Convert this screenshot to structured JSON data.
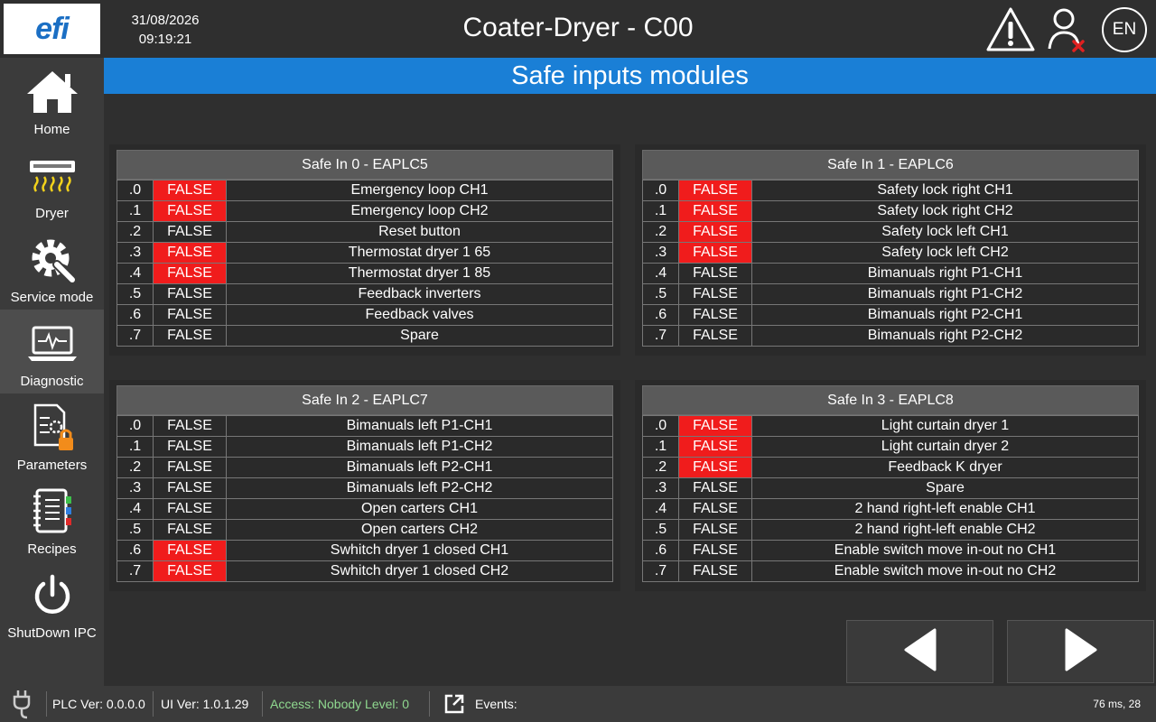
{
  "header": {
    "logo": "efi",
    "date": "31/08/2026",
    "time": "09:19:21",
    "title": "Coater-Dryer - C00",
    "lang": "EN",
    "icons": [
      "warning-icon",
      "user-logout-icon"
    ]
  },
  "sidebar": {
    "items": [
      {
        "label": "Home",
        "icon": "home-icon"
      },
      {
        "label": "Dryer",
        "icon": "dryer-icon"
      },
      {
        "label": "Service mode",
        "icon": "service-gear-icon"
      },
      {
        "label": "Diagnostic",
        "icon": "diagnostic-monitor-icon",
        "active": true
      },
      {
        "label": "Parameters",
        "icon": "parameters-lock-icon"
      },
      {
        "label": "Recipes",
        "icon": "recipes-notebook-icon"
      },
      {
        "label": "ShutDown IPC",
        "icon": "power-icon"
      }
    ]
  },
  "page": {
    "title": "Safe inputs modules"
  },
  "colors": {
    "accent": "#1a7fd6",
    "active_false": "#f01c1c",
    "access": "#8fd88f"
  },
  "modules": [
    {
      "title": "Safe In 0 - EAPLC5",
      "rows": [
        {
          "bit": ".0",
          "value": "FALSE",
          "label": "Emergency loop CH1",
          "alarm": true
        },
        {
          "bit": ".1",
          "value": "FALSE",
          "label": "Emergency loop CH2",
          "alarm": true
        },
        {
          "bit": ".2",
          "value": "FALSE",
          "label": "Reset button",
          "alarm": false
        },
        {
          "bit": ".3",
          "value": "FALSE",
          "label": "Thermostat dryer 1 65",
          "alarm": true
        },
        {
          "bit": ".4",
          "value": "FALSE",
          "label": "Thermostat dryer 1 85",
          "alarm": true
        },
        {
          "bit": ".5",
          "value": "FALSE",
          "label": "Feedback inverters",
          "alarm": false
        },
        {
          "bit": ".6",
          "value": "FALSE",
          "label": "Feedback valves",
          "alarm": false
        },
        {
          "bit": ".7",
          "value": "FALSE",
          "label": "Spare",
          "alarm": false
        }
      ]
    },
    {
      "title": "Safe In 1 - EAPLC6",
      "rows": [
        {
          "bit": ".0",
          "value": "FALSE",
          "label": "Safety lock right CH1",
          "alarm": true
        },
        {
          "bit": ".1",
          "value": "FALSE",
          "label": "Safety lock right CH2",
          "alarm": true
        },
        {
          "bit": ".2",
          "value": "FALSE",
          "label": "Safety lock left CH1",
          "alarm": true
        },
        {
          "bit": ".3",
          "value": "FALSE",
          "label": "Safety lock left CH2",
          "alarm": true
        },
        {
          "bit": ".4",
          "value": "FALSE",
          "label": "Bimanuals right P1-CH1",
          "alarm": false
        },
        {
          "bit": ".5",
          "value": "FALSE",
          "label": "Bimanuals right P1-CH2",
          "alarm": false
        },
        {
          "bit": ".6",
          "value": "FALSE",
          "label": "Bimanuals right P2-CH1",
          "alarm": false
        },
        {
          "bit": ".7",
          "value": "FALSE",
          "label": "Bimanuals right P2-CH2",
          "alarm": false
        }
      ]
    },
    {
      "title": "Safe In 2 - EAPLC7",
      "rows": [
        {
          "bit": ".0",
          "value": "FALSE",
          "label": "Bimanuals left P1-CH1",
          "alarm": false
        },
        {
          "bit": ".1",
          "value": "FALSE",
          "label": "Bimanuals left P1-CH2",
          "alarm": false
        },
        {
          "bit": ".2",
          "value": "FALSE",
          "label": "Bimanuals left P2-CH1",
          "alarm": false
        },
        {
          "bit": ".3",
          "value": "FALSE",
          "label": "Bimanuals left P2-CH2",
          "alarm": false
        },
        {
          "bit": ".4",
          "value": "FALSE",
          "label": "Open carters CH1",
          "alarm": false
        },
        {
          "bit": ".5",
          "value": "FALSE",
          "label": "Open carters CH2",
          "alarm": false
        },
        {
          "bit": ".6",
          "value": "FALSE",
          "label": "Swhitch dryer 1 closed CH1",
          "alarm": true
        },
        {
          "bit": ".7",
          "value": "FALSE",
          "label": "Swhitch dryer 1 closed CH2",
          "alarm": true
        }
      ]
    },
    {
      "title": "Safe In 3 - EAPLC8",
      "rows": [
        {
          "bit": ".0",
          "value": "FALSE",
          "label": "Light curtain dryer 1",
          "alarm": true
        },
        {
          "bit": ".1",
          "value": "FALSE",
          "label": "Light curtain dryer 2",
          "alarm": true
        },
        {
          "bit": ".2",
          "value": "FALSE",
          "label": "Feedback K dryer",
          "alarm": true
        },
        {
          "bit": ".3",
          "value": "FALSE",
          "label": "Spare",
          "alarm": false
        },
        {
          "bit": ".4",
          "value": "FALSE",
          "label": "2 hand right-left enable CH1",
          "alarm": false
        },
        {
          "bit": ".5",
          "value": "FALSE",
          "label": "2 hand right-left enable CH2",
          "alarm": false
        },
        {
          "bit": ".6",
          "value": "FALSE",
          "label": "Enable switch move in-out no CH1",
          "alarm": false
        },
        {
          "bit": ".7",
          "value": "FALSE",
          "label": "Enable switch move in-out no CH2",
          "alarm": false
        }
      ]
    }
  ],
  "navigation": {
    "prev_icon": "arrow-left-icon",
    "next_icon": "arrow-right-icon"
  },
  "statusbar": {
    "plc_ver": "PLC Ver: 0.0.0.0",
    "ui_ver": "UI Ver: 1.0.1.29",
    "access": "Access: Nobody Level: 0",
    "events": "Events:",
    "cycle": "76 ms, 28"
  }
}
